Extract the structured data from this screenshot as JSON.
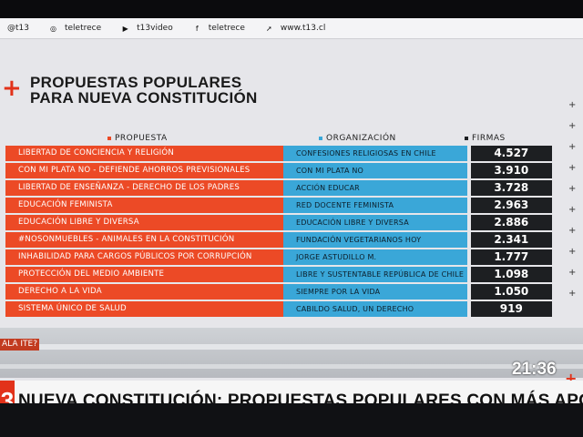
{
  "social": [
    {
      "icon": "at-icon",
      "glyph": "",
      "label": "@t13"
    },
    {
      "icon": "instagram-icon",
      "glyph": "◎",
      "label": "teletrece"
    },
    {
      "icon": "youtube-icon",
      "glyph": "▶",
      "label": "t13video"
    },
    {
      "icon": "facebook-icon",
      "glyph": "f",
      "label": "teletrece"
    },
    {
      "icon": "web-icon",
      "glyph": "➚",
      "label": "www.t13.cl"
    }
  ],
  "title": {
    "line1": "PROPUESTAS POPULARES",
    "line2": "PARA NUEVA CONSTITUCIÓN"
  },
  "headers": {
    "propuesta": "PROPUESTA",
    "organizacion": "ORGANIZACIÓN",
    "firmas": "FIRMAS"
  },
  "colors": {
    "red": "#ec4a26",
    "blue": "#3aa7d8",
    "dark": "#1d1f22",
    "brand": "#e2321a"
  },
  "rows": [
    {
      "propuesta": "LIBERTAD DE CONCIENCIA Y RELIGIÓN",
      "organizacion": "CONFESIONES RELIGIOSAS EN CHILE",
      "firmas": "4.527"
    },
    {
      "propuesta": "CON MI PLATA NO - DEFIENDE AHORROS PREVISIONALES",
      "organizacion": "CON MI PLATA NO",
      "firmas": "3.910"
    },
    {
      "propuesta": "LIBERTAD DE ENSEÑANZA - DERECHO DE LOS PADRES",
      "organizacion": "ACCIÓN EDUCAR",
      "firmas": "3.728"
    },
    {
      "propuesta": "EDUCACIÓN FEMINISTA",
      "organizacion": "RED DOCENTE FEMINISTA",
      "firmas": "2.963"
    },
    {
      "propuesta": "EDUCACIÓN LIBRE Y DIVERSA",
      "organizacion": "EDUCACIÓN LIBRE Y DIVERSA",
      "firmas": "2.886"
    },
    {
      "propuesta": "#NOSONMUEBLES - ANIMALES EN LA CONSTITUCIÓN",
      "organizacion": "FUNDACIÓN VEGETARIANOS HOY",
      "firmas": "2.341"
    },
    {
      "propuesta": "INHABILIDAD PARA CARGOS PÚBLICOS POR CORRUPCIÓN",
      "organizacion": "JORGE ASTUDILLO M.",
      "firmas": "1.777"
    },
    {
      "propuesta": "PROTECCIÓN DEL MEDIO AMBIENTE",
      "organizacion": "LIBRE Y SUSTENTABLE REPÚBLICA DE CHILE",
      "firmas": "1.098"
    },
    {
      "propuesta": "DERECHO A LA VIDA",
      "organizacion": "SIEMPRE POR LA VIDA",
      "firmas": "1.050"
    },
    {
      "propuesta": "SISTEMA ÚNICO DE SALUD",
      "organizacion": "CABILDO SALUD, UN DERECHO",
      "firmas": "919"
    }
  ],
  "side_text": "ALA ITE?",
  "clock": "21:36",
  "ticker": {
    "channel": "3",
    "headline": "NUEVA CONSTITUCIÓN: PROPUESTAS POPULARES CON MÁS APOYO"
  }
}
